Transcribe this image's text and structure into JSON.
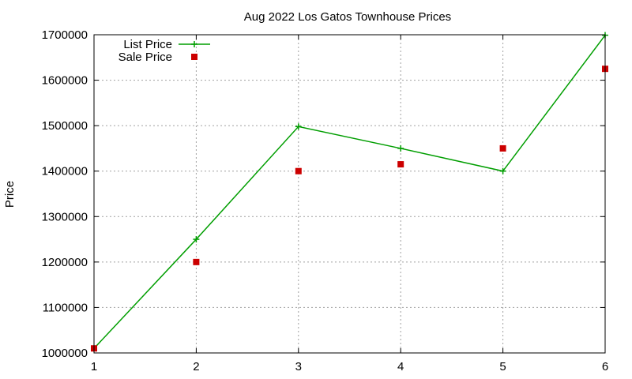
{
  "chart_data": {
    "type": "line",
    "title": "Aug 2022 Los Gatos Townhouse Prices",
    "xlabel": "",
    "ylabel": "Price",
    "xlim": [
      1,
      6
    ],
    "ylim": [
      1000000,
      1700000
    ],
    "x_ticks": [
      "1",
      "2",
      "3",
      "4",
      "5",
      "6"
    ],
    "y_ticks": [
      "1000000",
      "1100000",
      "1200000",
      "1300000",
      "1400000",
      "1500000",
      "1600000",
      "1700000"
    ],
    "grid": true,
    "legend_position": "top-left",
    "series": [
      {
        "name": "List Price",
        "style": "line+cross",
        "color": "#009e00",
        "x": [
          1,
          2,
          3,
          4,
          5,
          6
        ],
        "y": [
          1010000,
          1250000,
          1498000,
          1450000,
          1400000,
          1699000
        ]
      },
      {
        "name": "Sale Price",
        "style": "square",
        "color": "#cc0000",
        "x": [
          1,
          2,
          3,
          4,
          5,
          6
        ],
        "y": [
          1010000,
          1200000,
          1400000,
          1415000,
          1450000,
          1625000
        ]
      }
    ]
  }
}
